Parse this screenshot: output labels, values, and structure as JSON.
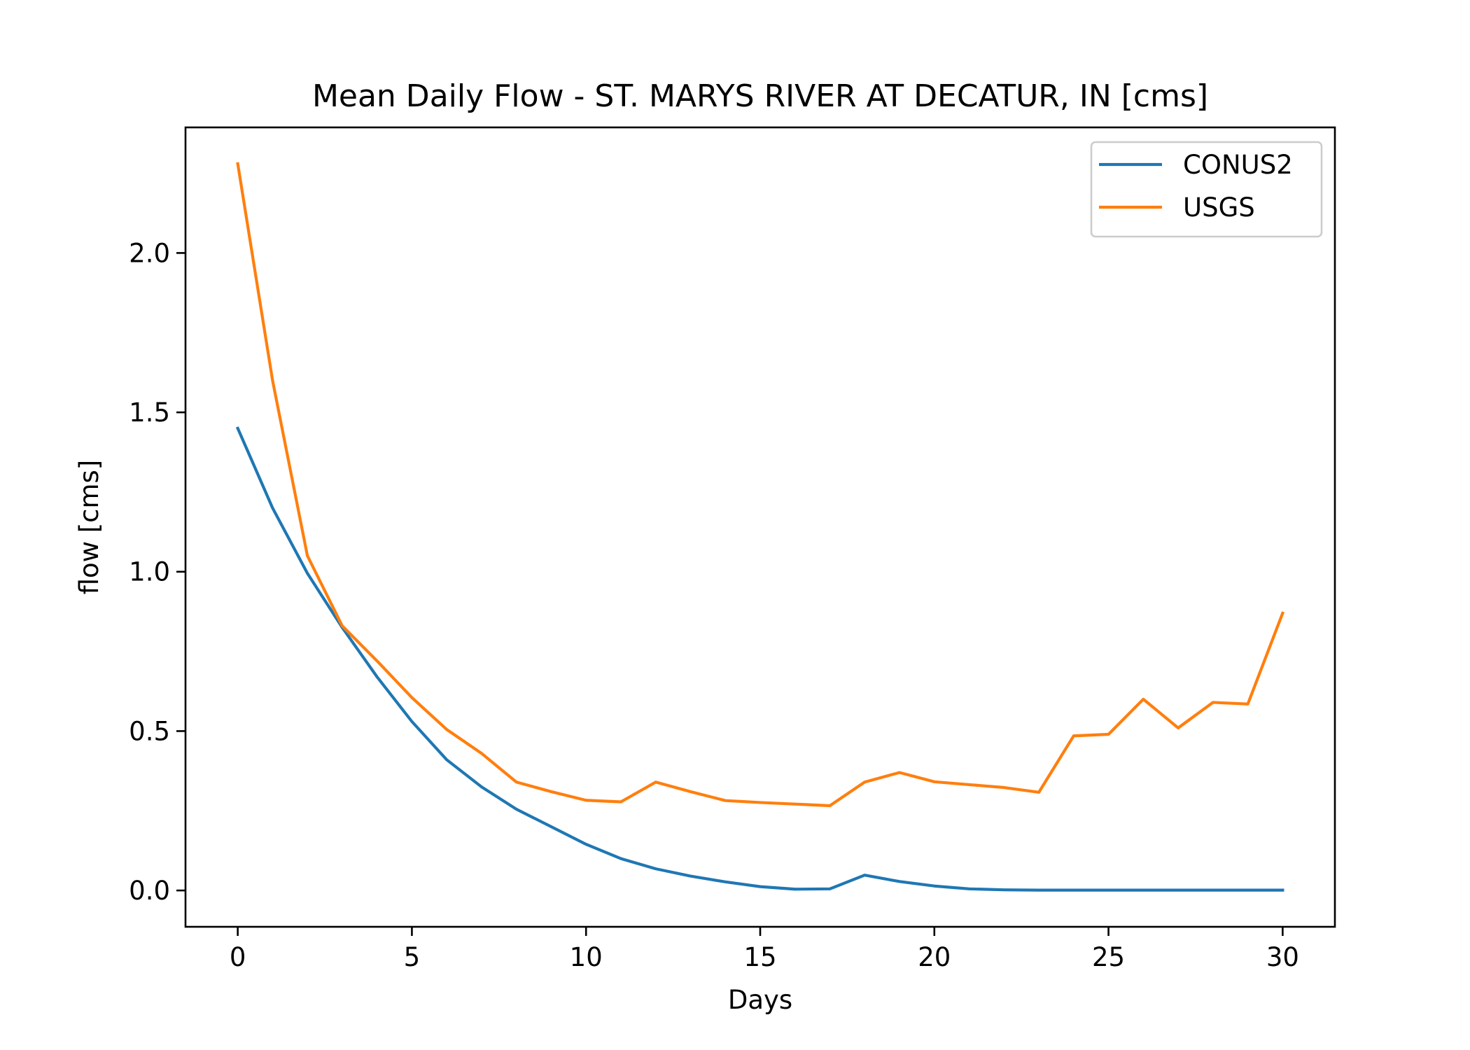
{
  "chart_data": {
    "type": "line",
    "title": "Mean Daily Flow - ST. MARYS RIVER AT DECATUR, IN [cms]",
    "xlabel": "Days",
    "ylabel": "flow [cms]",
    "xlim": [
      -1.5,
      31.5
    ],
    "ylim": [
      -0.114,
      2.394
    ],
    "xticks": [
      0,
      5,
      10,
      15,
      20,
      25,
      30
    ],
    "xtick_labels": [
      "0",
      "5",
      "10",
      "15",
      "20",
      "25",
      "30"
    ],
    "yticks": [
      0.0,
      0.5,
      1.0,
      1.5,
      2.0
    ],
    "ytick_labels": [
      "0.0",
      "0.5",
      "1.0",
      "1.5",
      "2.0"
    ],
    "grid": false,
    "legend": "top-right",
    "x": [
      0,
      1,
      2,
      3,
      4,
      5,
      6,
      7,
      8,
      9,
      10,
      11,
      12,
      13,
      14,
      15,
      16,
      17,
      18,
      19,
      20,
      21,
      22,
      23,
      24,
      25,
      26,
      27,
      28,
      29,
      30
    ],
    "series": [
      {
        "name": "CONUS2",
        "color": "#1f77b4",
        "values": [
          1.45,
          1.2,
          0.995,
          0.825,
          0.67,
          0.53,
          0.41,
          0.325,
          0.255,
          0.2,
          0.145,
          0.1,
          0.068,
          0.045,
          0.027,
          0.012,
          0.004,
          0.005,
          0.048,
          0.028,
          0.014,
          0.005,
          0.002,
          0.001,
          0.001,
          0.001,
          0.001,
          0.001,
          0.001,
          0.001,
          0.001
        ]
      },
      {
        "name": "USGS",
        "color": "#ff7f0e",
        "values": [
          2.28,
          1.6,
          1.05,
          0.83,
          0.72,
          0.605,
          0.505,
          0.43,
          0.34,
          0.31,
          0.283,
          0.278,
          0.34,
          0.31,
          0.282,
          0.276,
          0.271,
          0.266,
          0.34,
          0.37,
          0.341,
          0.332,
          0.323,
          0.308,
          0.485,
          0.49,
          0.6,
          0.51,
          0.59,
          0.585,
          0.87
        ]
      }
    ]
  }
}
